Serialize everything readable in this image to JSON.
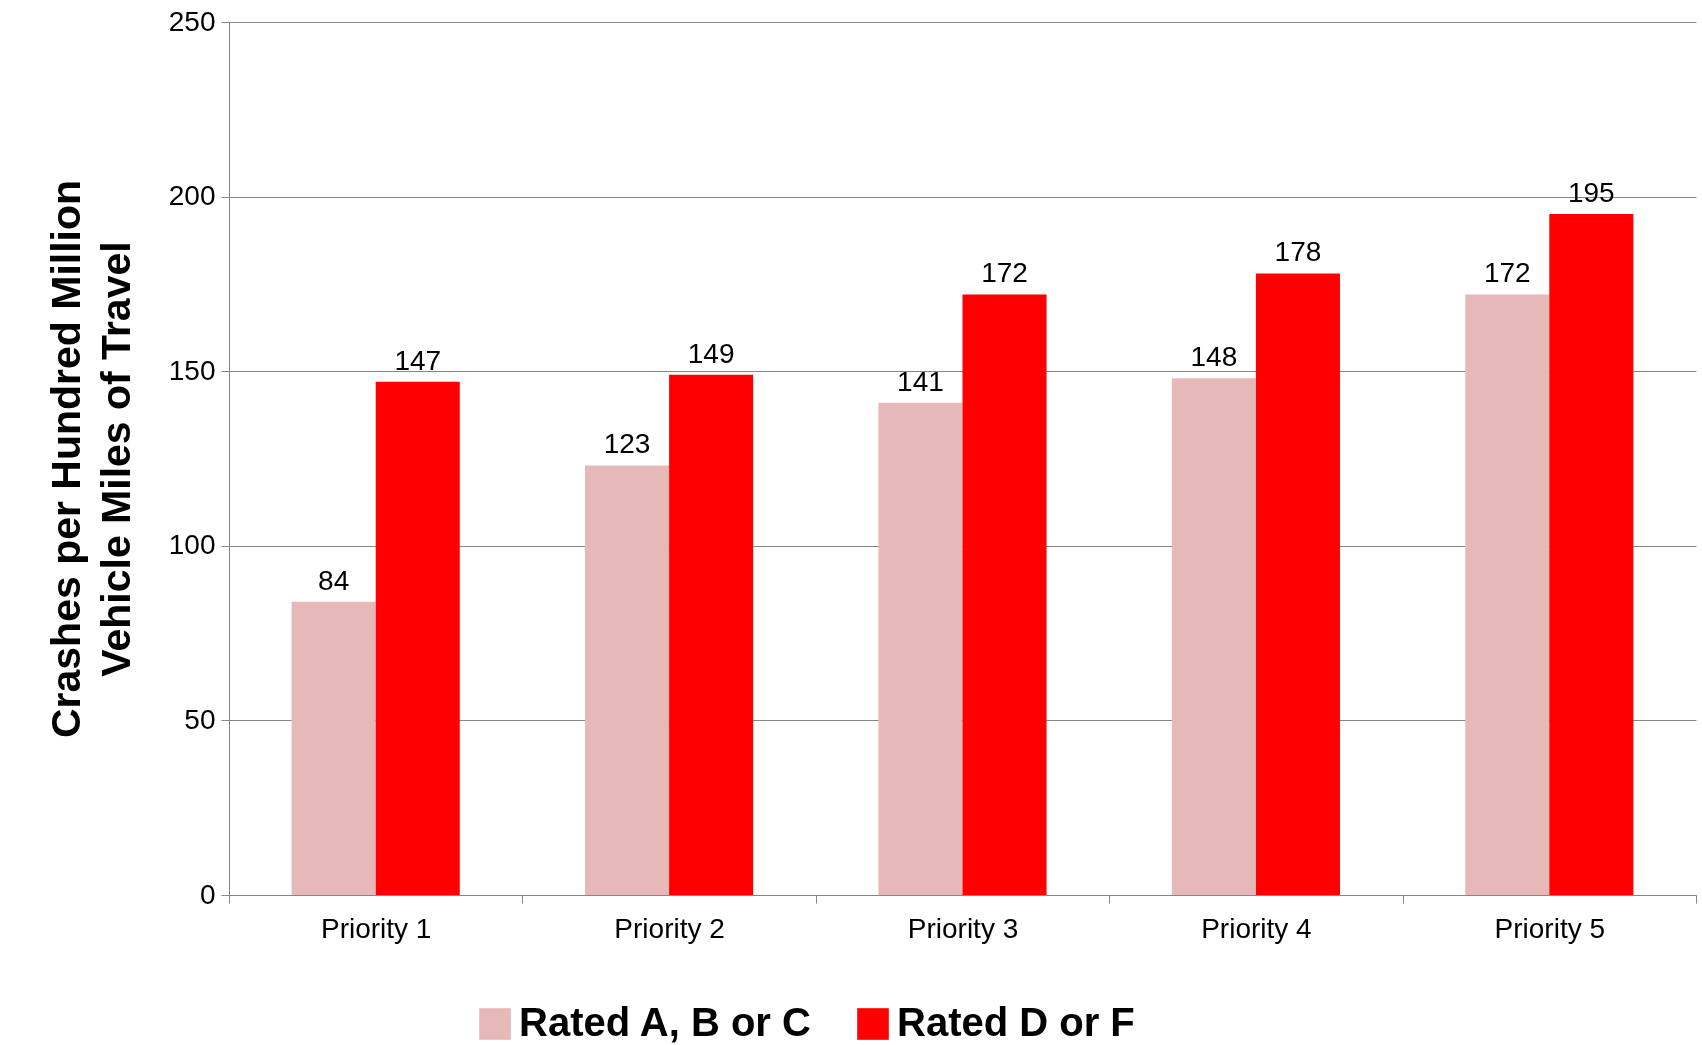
{
  "chart_data": {
    "type": "bar",
    "ylabel": "Crashes per Hundred Million\nVehicle Miles of Travel",
    "categories": [
      "Priority 1",
      "Priority 2",
      "Priority 3",
      "Priority 4",
      "Priority 5"
    ],
    "series": [
      {
        "name": "Rated A, B or C",
        "color": "#e6b9b8",
        "values": [
          84,
          123,
          141,
          148,
          172
        ]
      },
      {
        "name": "Rated D or F",
        "color": "#ff0000",
        "values": [
          147,
          149,
          172,
          178,
          195
        ]
      }
    ],
    "ylim": [
      0,
      250
    ],
    "yticks": [
      0,
      50,
      100,
      150,
      200,
      250
    ],
    "grid": "y",
    "legend": "bottom",
    "data_labels": true
  }
}
